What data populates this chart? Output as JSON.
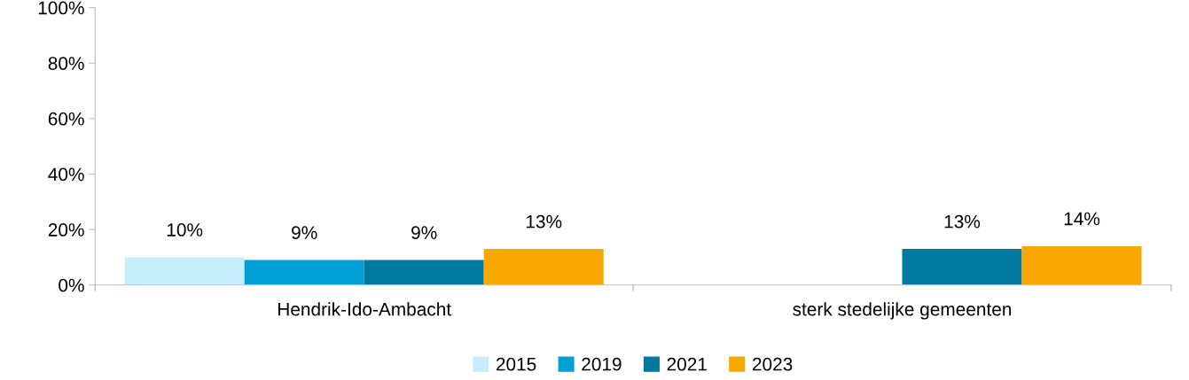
{
  "chart_data": {
    "type": "bar",
    "categories": [
      "Hendrik-Ido-Ambacht",
      "sterk stedelijke gemeenten"
    ],
    "series": [
      {
        "name": "2015",
        "color": "#c5eefa",
        "values": [
          10,
          null
        ],
        "value_labels": [
          "10%",
          null
        ]
      },
      {
        "name": "2019",
        "color": "#00a0d6",
        "values": [
          9,
          null
        ],
        "value_labels": [
          "9%",
          null
        ]
      },
      {
        "name": "2021",
        "color": "#00799e",
        "values": [
          9,
          13
        ],
        "value_labels": [
          "9%",
          "13%"
        ]
      },
      {
        "name": "2023",
        "color": "#f8a800",
        "values": [
          13,
          14
        ],
        "value_labels": [
          "13%",
          "14%"
        ]
      }
    ],
    "ylim": [
      0,
      100
    ],
    "yticks": [
      {
        "value": 0,
        "label": "0%"
      },
      {
        "value": 20,
        "label": "20%"
      },
      {
        "value": 40,
        "label": "40%"
      },
      {
        "value": 60,
        "label": "60%"
      },
      {
        "value": 80,
        "label": "80%"
      },
      {
        "value": 100,
        "label": "100%"
      }
    ],
    "grid": false,
    "legend": "bottom"
  }
}
